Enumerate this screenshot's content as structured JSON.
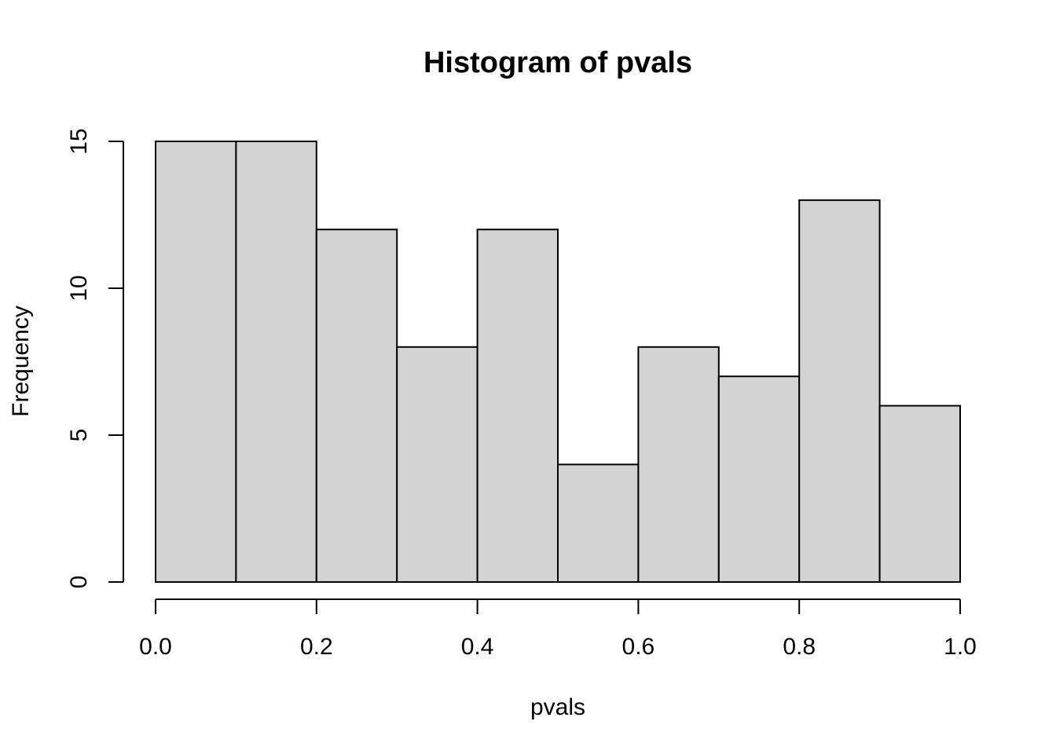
{
  "chart_data": {
    "type": "bar",
    "title": "Histogram of pvals",
    "xlabel": "pvals",
    "ylabel": "Frequency",
    "bin_edges": [
      0.0,
      0.1,
      0.2,
      0.3,
      0.4,
      0.5,
      0.6,
      0.7,
      0.8,
      0.9,
      1.0
    ],
    "values": [
      15,
      15,
      12,
      8,
      12,
      4,
      8,
      7,
      13,
      6
    ],
    "xlim": [
      0,
      1
    ],
    "ylim": [
      0,
      15
    ],
    "x_ticks": [
      "0.0",
      "0.2",
      "0.4",
      "0.6",
      "0.8",
      "1.0"
    ],
    "y_ticks": [
      "0",
      "5",
      "10",
      "15"
    ],
    "bar_color": "#d3d3d3",
    "grid": false
  }
}
